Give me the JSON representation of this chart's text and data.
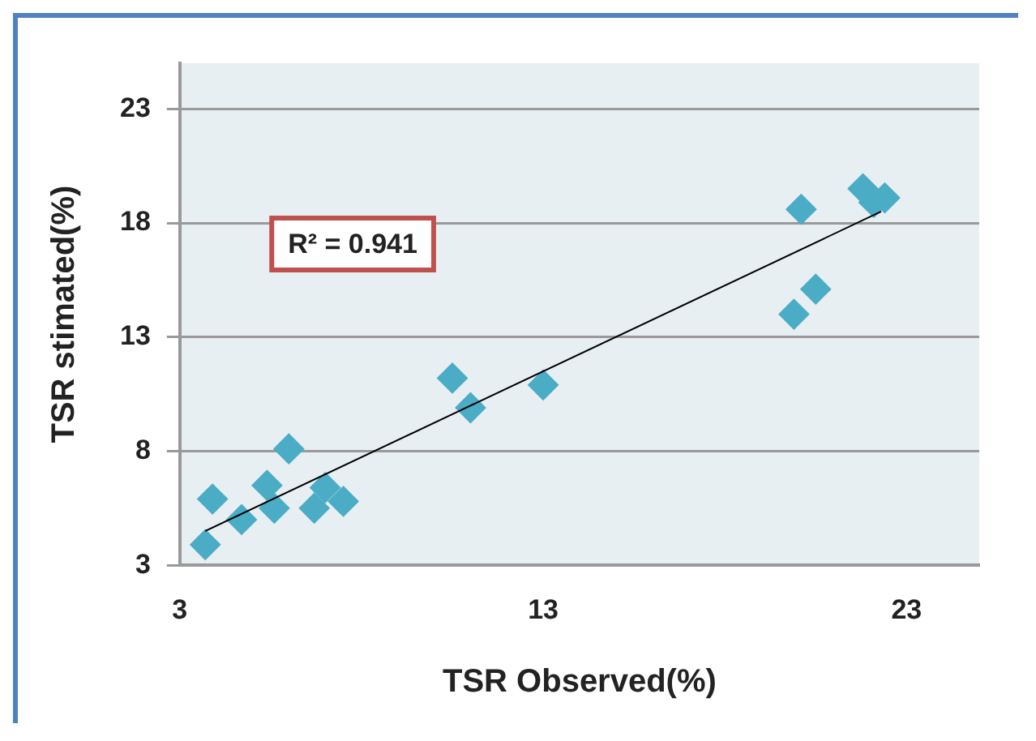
{
  "chart_data": {
    "type": "scatter",
    "xlabel": "TSR Observed(%)",
    "ylabel": "TSR stimated(%)",
    "xlim": [
      3,
      25
    ],
    "xticks": [
      3,
      13,
      23
    ],
    "ylim": [
      3,
      25
    ],
    "yticks": [
      3,
      8,
      13,
      18,
      23
    ],
    "grid": "y",
    "legend": false,
    "annotations": [
      "R² = 0.941"
    ],
    "series": [
      {
        "marker": "diamond",
        "color": "#4bacc6",
        "x": [
          3.7,
          3.9,
          4.7,
          5.4,
          5.6,
          6.0,
          6.7,
          7.0,
          7.5,
          10.5,
          11.0,
          13.0,
          19.9,
          20.5,
          20.1,
          21.8,
          22.1,
          22.4
        ],
        "values": [
          3.9,
          5.9,
          5.0,
          6.5,
          5.5,
          8.1,
          5.5,
          6.4,
          5.8,
          11.2,
          9.9,
          10.9,
          14.0,
          15.1,
          18.6,
          19.5,
          18.9,
          19.1
        ]
      },
      {
        "type": "line",
        "marker": "none",
        "color": "#000000",
        "x": [
          3.7,
          22.3
        ],
        "values": [
          4.5,
          18.5
        ]
      }
    ]
  }
}
